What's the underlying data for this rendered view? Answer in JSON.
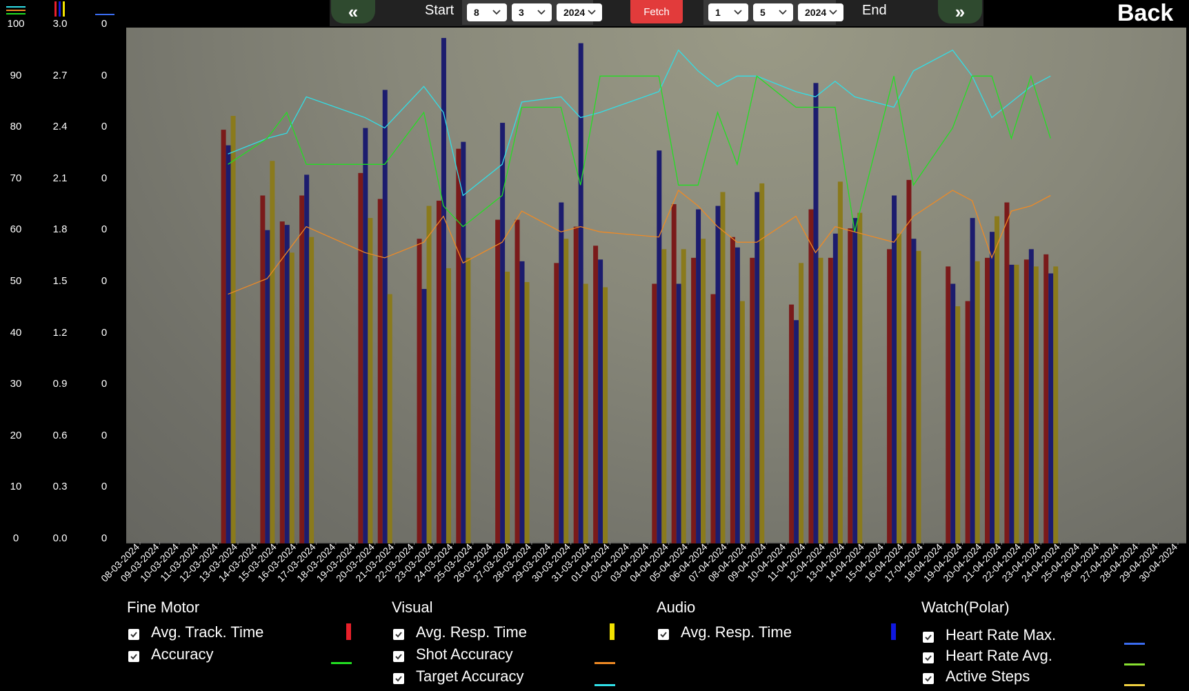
{
  "toolbar": {
    "prev_label": "«",
    "next_label": "»",
    "start_label": "Start",
    "end_label": "End",
    "fetch_label": "Fetch",
    "back_label": "Back",
    "start_day": "8",
    "start_month": "3",
    "start_year": "2024",
    "end_day": "1",
    "end_month": "5",
    "end_year": "2024"
  },
  "legend": {
    "groups": [
      {
        "title": "Fine Motor",
        "items": [
          {
            "label": "Avg. Track. Time",
            "color": "#e8202a",
            "kind": "bar"
          },
          {
            "label": "Accuracy",
            "color": "#22e022",
            "kind": "line"
          }
        ]
      },
      {
        "title": "Visual",
        "items": [
          {
            "label": "Avg. Resp. Time",
            "color": "#f2e200",
            "kind": "bar"
          },
          {
            "label": "Shot Accuracy",
            "color": "#f08a24",
            "kind": "line"
          },
          {
            "label": "Target Accuracy",
            "color": "#30e0e8",
            "kind": "line"
          }
        ]
      },
      {
        "title": "Audio",
        "items": [
          {
            "label": "Avg. Resp. Time",
            "color": "#1018e0",
            "kind": "bar"
          }
        ]
      },
      {
        "title": "Watch(Polar)",
        "items": [
          {
            "label": "Heart Rate Max.",
            "color": "#3a6cf0",
            "kind": "line"
          },
          {
            "label": "Heart Rate Avg.",
            "color": "#88e030",
            "kind": "line"
          },
          {
            "label": "Active Steps",
            "color": "#f0d040",
            "kind": "line"
          }
        ]
      }
    ]
  },
  "axes": {
    "y_percent": [
      "100",
      "90",
      "80",
      "70",
      "60",
      "50",
      "40",
      "30",
      "20",
      "10",
      "0"
    ],
    "y_time": [
      "3.0",
      "2.7",
      "2.4",
      "2.1",
      "1.8",
      "1.5",
      "1.2",
      "0.9",
      "0.6",
      "0.3",
      "0.0"
    ],
    "y_watch": [
      "0",
      "0",
      "0",
      "0",
      "0",
      "0",
      "0",
      "0",
      "0",
      "0",
      "0"
    ]
  },
  "chart_data": {
    "type": "bar",
    "ylim_percent": [
      0,
      100
    ],
    "ylim_time": [
      0,
      3.0
    ],
    "categories": [
      "08-03-2024",
      "09-03-2024",
      "10-03-2024",
      "11-03-2024",
      "12-03-2024",
      "13-03-2024",
      "14-03-2024",
      "15-03-2024",
      "16-03-2024",
      "17-03-2024",
      "18-03-2024",
      "19-03-2024",
      "20-03-2024",
      "21-03-2024",
      "22-03-2024",
      "23-03-2024",
      "24-03-2024",
      "25-03-2024",
      "26-03-2024",
      "27-03-2024",
      "28-03-2024",
      "29-03-2024",
      "30-03-2024",
      "31-03-2024",
      "01-04-2024",
      "02-04-2024",
      "03-04-2024",
      "04-04-2024",
      "05-04-2024",
      "06-04-2024",
      "07-04-2024",
      "08-04-2024",
      "09-04-2024",
      "10-04-2024",
      "11-04-2024",
      "12-04-2024",
      "13-04-2024",
      "14-04-2024",
      "15-04-2024",
      "16-04-2024",
      "17-04-2024",
      "18-04-2024",
      "19-04-2024",
      "20-04-2024",
      "21-04-2024",
      "22-04-2024",
      "23-04-2024",
      "24-04-2024",
      "25-04-2024",
      "26-04-2024",
      "27-04-2024",
      "28-04-2024",
      "29-04-2024",
      "30-04-2024"
    ],
    "sessions": [
      {
        "date": "12-03-2024",
        "slot": 0,
        "track": 2.39,
        "visual": 2.47,
        "audio": 2.3,
        "accuracy": 73,
        "shot": 48,
        "target": 75
      },
      {
        "date": "14-03-2024",
        "slot": 0,
        "track": 2.01,
        "visual": 2.21,
        "audio": 1.81,
        "accuracy": 78,
        "shot": 51,
        "target": 78
      },
      {
        "date": "15-03-2024",
        "slot": 0,
        "track": 1.86,
        "visual": 1.68,
        "audio": 1.84,
        "accuracy": 83,
        "shot": 56,
        "target": 79
      },
      {
        "date": "16-03-2024",
        "slot": 0,
        "track": 2.01,
        "visual": 1.77,
        "audio": 2.13,
        "accuracy": 73,
        "shot": 61,
        "target": 86
      },
      {
        "date": "19-03-2024",
        "slot": 0,
        "track": 2.14,
        "visual": 1.88,
        "audio": 2.4,
        "accuracy": 73,
        "shot": 56,
        "target": 82
      },
      {
        "date": "20-03-2024",
        "slot": 0,
        "track": 1.99,
        "visual": 1.44,
        "audio": 2.62,
        "accuracy": 73,
        "shot": 55,
        "target": 80
      },
      {
        "date": "22-03-2024",
        "slot": 0,
        "track": 1.76,
        "visual": 1.95,
        "audio": 1.47,
        "accuracy": 83,
        "shot": 58,
        "target": 88
      },
      {
        "date": "23-03-2024",
        "slot": 0,
        "track": 1.98,
        "visual": 1.59,
        "audio": 2.92,
        "accuracy": 65,
        "shot": 63,
        "target": 83
      },
      {
        "date": "24-03-2024",
        "slot": 0,
        "track": 2.28,
        "visual": 1.65,
        "audio": 2.32,
        "accuracy": 61,
        "shot": 54,
        "target": 67
      },
      {
        "date": "26-03-2024",
        "slot": 0,
        "track": 1.87,
        "visual": 1.57,
        "audio": 2.43,
        "accuracy": 67,
        "shot": 58,
        "target": 73
      },
      {
        "date": "27-03-2024",
        "slot": 0,
        "track": 1.87,
        "visual": 1.51,
        "audio": 1.63,
        "accuracy": 84,
        "shot": 64,
        "target": 85
      },
      {
        "date": "29-03-2024",
        "slot": 0,
        "track": 1.62,
        "visual": 1.76,
        "audio": 1.97,
        "accuracy": 84,
        "shot": 60,
        "target": 86
      },
      {
        "date": "30-03-2024",
        "slot": 0,
        "track": 1.83,
        "visual": 1.5,
        "audio": 2.89,
        "accuracy": 69,
        "shot": 61,
        "target": 82
      },
      {
        "date": "31-03-2024",
        "slot": 0,
        "track": 1.72,
        "visual": 1.48,
        "audio": 1.64,
        "accuracy": 90,
        "shot": 60,
        "target": 83
      },
      {
        "date": "03-04-2024",
        "slot": 0,
        "track": 1.5,
        "visual": 1.7,
        "audio": 2.27,
        "accuracy": 90,
        "shot": 59,
        "target": 87
      },
      {
        "date": "04-04-2024",
        "slot": 0,
        "track": 1.96,
        "visual": 1.7,
        "audio": 1.5,
        "accuracy": 69,
        "shot": 68,
        "target": 95
      },
      {
        "date": "05-04-2024",
        "slot": 0,
        "track": 1.65,
        "visual": 1.76,
        "audio": 1.93,
        "accuracy": 69,
        "shot": 65,
        "target": 91
      },
      {
        "date": "06-04-2024",
        "slot": 0,
        "track": 1.44,
        "visual": 2.03,
        "audio": 1.95,
        "accuracy": 83,
        "shot": 61,
        "target": 88
      },
      {
        "date": "07-04-2024",
        "slot": 0,
        "track": 1.77,
        "visual": 1.4,
        "audio": 1.71,
        "accuracy": 73,
        "shot": 58,
        "target": 90
      },
      {
        "date": "08-04-2024",
        "slot": 0,
        "track": 1.65,
        "visual": 2.08,
        "audio": 2.03,
        "accuracy": 90,
        "shot": 58,
        "target": 90
      },
      {
        "date": "10-04-2024",
        "slot": 0,
        "track": 1.38,
        "visual": 1.62,
        "audio": 1.29,
        "accuracy": 84,
        "shot": 63,
        "target": 87
      },
      {
        "date": "11-04-2024",
        "slot": 0,
        "track": 1.93,
        "visual": 1.65,
        "audio": 2.66,
        "accuracy": 84,
        "shot": 56,
        "target": 86
      },
      {
        "date": "12-04-2024",
        "slot": 0,
        "track": 1.65,
        "visual": 2.09,
        "audio": 1.79,
        "accuracy": 84,
        "shot": 61,
        "target": 89
      },
      {
        "date": "13-04-2024",
        "slot": 0,
        "track": 1.82,
        "visual": 1.91,
        "audio": 1.88,
        "accuracy": 60,
        "shot": 60,
        "target": 86
      },
      {
        "date": "15-04-2024",
        "slot": 0,
        "track": 1.7,
        "visual": 1.79,
        "audio": 2.01,
        "accuracy": 90,
        "shot": 58,
        "target": 84
      },
      {
        "date": "16-04-2024",
        "slot": 0,
        "track": 2.1,
        "visual": 1.69,
        "audio": 1.76,
        "accuracy": 69,
        "shot": 63,
        "target": 91
      },
      {
        "date": "18-04-2024",
        "slot": 0,
        "track": 1.6,
        "visual": 1.37,
        "audio": 1.5,
        "accuracy": 80,
        "shot": 68,
        "target": 95
      },
      {
        "date": "19-04-2024",
        "slot": 0,
        "track": 1.4,
        "visual": 1.63,
        "audio": 1.88,
        "accuracy": 90,
        "shot": 66,
        "target": 90
      },
      {
        "date": "20-04-2024",
        "slot": 0,
        "track": 1.65,
        "visual": 1.89,
        "audio": 1.8,
        "accuracy": 90,
        "shot": 55,
        "target": 82
      },
      {
        "date": "21-04-2024",
        "slot": 0,
        "track": 1.97,
        "visual": 1.61,
        "audio": 1.61,
        "accuracy": 78,
        "shot": 64,
        "target": 85
      },
      {
        "date": "22-04-2024",
        "slot": 0,
        "track": 1.64,
        "visual": 1.6,
        "audio": 1.7,
        "accuracy": 90,
        "shot": 65,
        "target": 88
      },
      {
        "date": "23-04-2024",
        "slot": 0,
        "track": 1.67,
        "visual": 1.6,
        "audio": 1.56,
        "accuracy": 78,
        "shot": 67,
        "target": 90
      }
    ]
  }
}
